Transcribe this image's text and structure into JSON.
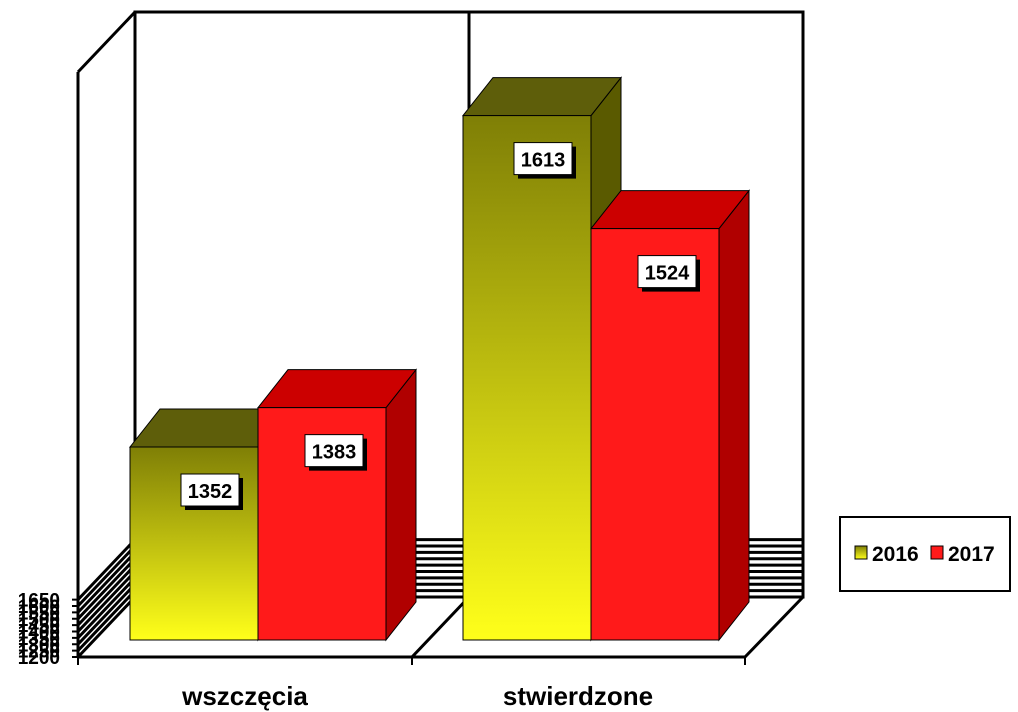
{
  "chart_data": {
    "type": "bar",
    "categories": [
      "wszczęcia",
      "stwierdzone"
    ],
    "series": [
      {
        "name": "2016",
        "values": [
          1352,
          1613
        ]
      },
      {
        "name": "2017",
        "values": [
          1383,
          1524
        ]
      }
    ],
    "yticks": [
      "1200",
      "1250",
      "1300",
      "1350",
      "1400",
      "1450",
      "1500",
      "1550",
      "1600",
      "1650"
    ],
    "ylim": [
      1200,
      1700
    ],
    "grid": true,
    "three_d": true,
    "legend_position": "right",
    "colors": {
      "2016_top": "#5e5e0a",
      "2016_front_top": "#7f7f06",
      "2016_front_bottom": "#ffff1a",
      "2016_side": "#5a5a00",
      "2017_front": "#ff1a1a",
      "2017_top": "#cc0000",
      "2017_side": "#b00000"
    }
  }
}
